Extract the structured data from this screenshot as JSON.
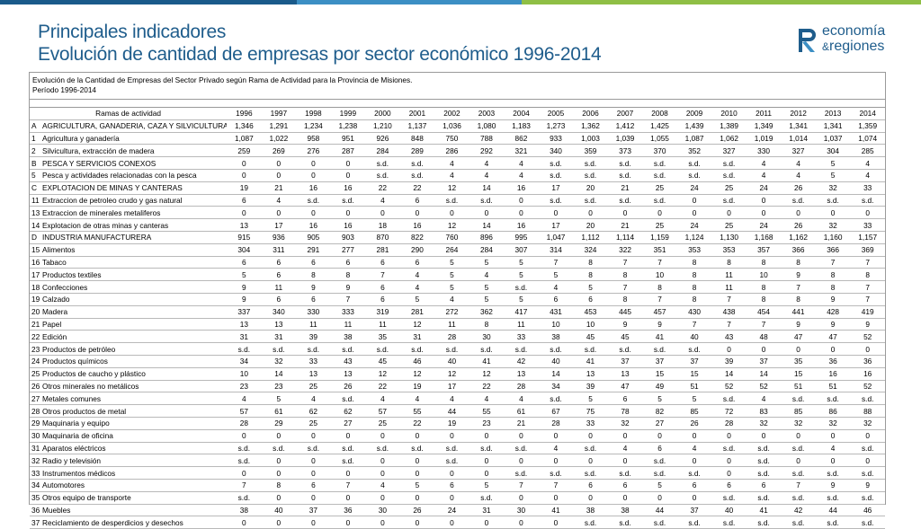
{
  "header": {
    "title": "Principales indicadores",
    "subtitle": "Evolución de cantidad de empresas por sector económico 1996-2014"
  },
  "logo": {
    "line1": "economía",
    "amp": "&",
    "line2": "regiones",
    "colors": {
      "text": "#1f5d8c",
      "mark": "#1f5d8c",
      "accent": "#3c8fc4"
    }
  },
  "colors": {
    "title": "#1f5d8c",
    "bar": [
      "#1a5a8a",
      "#3c8fc4",
      "#8fbf45"
    ]
  },
  "table": {
    "caption_line1": "Evolución de la Cantidad de Empresas del Sector Privado según Rama de Actividad para la Provincia de Misiones.",
    "caption_line2": "Período 1996-2014",
    "header_label": "Ramas de actividad",
    "years": [
      "1996",
      "1997",
      "1998",
      "1999",
      "2000",
      "2001",
      "2002",
      "2003",
      "2004",
      "2005",
      "2006",
      "2007",
      "2008",
      "2009",
      "2010",
      "2011",
      "2012",
      "2013",
      "2014"
    ],
    "rows": [
      {
        "code": "A",
        "name": "AGRICULTURA, GANADERIA, CAZA Y SILVICULTURA",
        "values": [
          "1,346",
          "1,291",
          "1,234",
          "1,238",
          "1,210",
          "1,137",
          "1,036",
          "1,080",
          "1,183",
          "1,273",
          "1,362",
          "1,412",
          "1,425",
          "1,439",
          "1,389",
          "1,349",
          "1,341",
          "1,341",
          "1,359"
        ]
      },
      {
        "code": "1",
        "name": "Agricultura y ganadería",
        "values": [
          "1,087",
          "1,022",
          "958",
          "951",
          "926",
          "848",
          "750",
          "788",
          "862",
          "933",
          "1,003",
          "1,039",
          "1,055",
          "1,087",
          "1,062",
          "1,019",
          "1,014",
          "1,037",
          "1,074"
        ]
      },
      {
        "code": "2",
        "name": "Silvicultura, extracción de madera",
        "values": [
          "259",
          "269",
          "276",
          "287",
          "284",
          "289",
          "286",
          "292",
          "321",
          "340",
          "359",
          "373",
          "370",
          "352",
          "327",
          "330",
          "327",
          "304",
          "285"
        ]
      },
      {
        "code": "B",
        "name": "PESCA Y SERVICIOS CONEXOS",
        "values": [
          "0",
          "0",
          "0",
          "0",
          "s.d.",
          "s.d.",
          "4",
          "4",
          "4",
          "s.d.",
          "s.d.",
          "s.d.",
          "s.d.",
          "s.d.",
          "s.d.",
          "4",
          "4",
          "5",
          "4"
        ]
      },
      {
        "code": "5",
        "name": "Pesca y actividades relacionadas con la pesca",
        "values": [
          "0",
          "0",
          "0",
          "0",
          "s.d.",
          "s.d.",
          "4",
          "4",
          "4",
          "s.d.",
          "s.d.",
          "s.d.",
          "s.d.",
          "s.d.",
          "s.d.",
          "4",
          "4",
          "5",
          "4"
        ]
      },
      {
        "code": "C",
        "name": "EXPLOTACION  DE  MINAS  Y  CANTERAS",
        "values": [
          "19",
          "21",
          "16",
          "16",
          "22",
          "22",
          "12",
          "14",
          "16",
          "17",
          "20",
          "21",
          "25",
          "24",
          "25",
          "24",
          "26",
          "32",
          "33"
        ]
      },
      {
        "code": "11",
        "name": "Extraccion de petroleo crudo y gas natural",
        "values": [
          "6",
          "4",
          "s.d.",
          "s.d.",
          "4",
          "6",
          "s.d.",
          "s.d.",
          "0",
          "s.d.",
          "s.d.",
          "s.d.",
          "s.d.",
          "0",
          "s.d.",
          "0",
          "s.d.",
          "s.d.",
          "s.d."
        ]
      },
      {
        "code": "13",
        "name": "Extraccion de minerales metaliferos",
        "values": [
          "0",
          "0",
          "0",
          "0",
          "0",
          "0",
          "0",
          "0",
          "0",
          "0",
          "0",
          "0",
          "0",
          "0",
          "0",
          "0",
          "0",
          "0",
          "0"
        ]
      },
      {
        "code": "14",
        "name": "Explotacion de otras minas y canteras",
        "values": [
          "13",
          "17",
          "16",
          "16",
          "18",
          "16",
          "12",
          "14",
          "16",
          "17",
          "20",
          "21",
          "25",
          "24",
          "25",
          "24",
          "26",
          "32",
          "33"
        ]
      },
      {
        "code": "D",
        "name": "INDUSTRIA MANUFACTURERA",
        "values": [
          "915",
          "936",
          "905",
          "903",
          "870",
          "822",
          "760",
          "896",
          "995",
          "1,047",
          "1,112",
          "1,114",
          "1,159",
          "1,124",
          "1,130",
          "1,168",
          "1,162",
          "1,160",
          "1,157"
        ]
      },
      {
        "code": "15",
        "name": "Alimentos",
        "values": [
          "304",
          "311",
          "291",
          "277",
          "281",
          "290",
          "264",
          "284",
          "307",
          "314",
          "324",
          "322",
          "351",
          "353",
          "353",
          "357",
          "366",
          "366",
          "369"
        ]
      },
      {
        "code": "16",
        "name": "Tabaco",
        "values": [
          "6",
          "6",
          "6",
          "6",
          "6",
          "6",
          "5",
          "5",
          "5",
          "7",
          "8",
          "7",
          "7",
          "8",
          "8",
          "8",
          "8",
          "7",
          "7"
        ]
      },
      {
        "code": "17",
        "name": "Productos textiles",
        "values": [
          "5",
          "6",
          "8",
          "8",
          "7",
          "4",
          "5",
          "4",
          "5",
          "5",
          "8",
          "8",
          "10",
          "8",
          "11",
          "10",
          "9",
          "8",
          "8"
        ]
      },
      {
        "code": "18",
        "name": "Confecciones",
        "values": [
          "9",
          "11",
          "9",
          "9",
          "6",
          "4",
          "5",
          "5",
          "s.d.",
          "4",
          "5",
          "7",
          "8",
          "8",
          "11",
          "8",
          "7",
          "8",
          "7"
        ]
      },
      {
        "code": "19",
        "name": "Calzado",
        "values": [
          "9",
          "6",
          "6",
          "7",
          "6",
          "5",
          "4",
          "5",
          "5",
          "6",
          "6",
          "8",
          "7",
          "8",
          "7",
          "8",
          "8",
          "9",
          "7"
        ]
      },
      {
        "code": "20",
        "name": "Madera",
        "values": [
          "337",
          "340",
          "330",
          "333",
          "319",
          "281",
          "272",
          "362",
          "417",
          "431",
          "453",
          "445",
          "457",
          "430",
          "438",
          "454",
          "441",
          "428",
          "419"
        ]
      },
      {
        "code": "21",
        "name": "Papel",
        "values": [
          "13",
          "13",
          "11",
          "11",
          "11",
          "12",
          "11",
          "8",
          "11",
          "10",
          "10",
          "9",
          "9",
          "7",
          "7",
          "7",
          "9",
          "9",
          "9"
        ]
      },
      {
        "code": "22",
        "name": "Edición",
        "values": [
          "31",
          "31",
          "39",
          "38",
          "35",
          "31",
          "28",
          "30",
          "33",
          "38",
          "45",
          "45",
          "41",
          "40",
          "43",
          "48",
          "47",
          "47",
          "52"
        ]
      },
      {
        "code": "23",
        "name": "Productos de petróleo",
        "values": [
          "s.d.",
          "s.d.",
          "s.d.",
          "s.d.",
          "s.d.",
          "s.d.",
          "s.d.",
          "s.d.",
          "s.d.",
          "s.d.",
          "s.d.",
          "s.d.",
          "s.d.",
          "s.d.",
          "0",
          "0",
          "0",
          "0",
          "0"
        ]
      },
      {
        "code": "24",
        "name": "Productos químicos",
        "values": [
          "34",
          "32",
          "33",
          "43",
          "45",
          "46",
          "40",
          "41",
          "42",
          "40",
          "41",
          "37",
          "37",
          "37",
          "39",
          "37",
          "35",
          "36",
          "36"
        ]
      },
      {
        "code": "25",
        "name": "Productos de caucho y plástico",
        "values": [
          "10",
          "14",
          "13",
          "13",
          "12",
          "12",
          "12",
          "12",
          "13",
          "14",
          "13",
          "13",
          "15",
          "15",
          "14",
          "14",
          "15",
          "16",
          "16"
        ]
      },
      {
        "code": "26",
        "name": "Otros minerales no metálicos",
        "values": [
          "23",
          "23",
          "25",
          "26",
          "22",
          "19",
          "17",
          "22",
          "28",
          "34",
          "39",
          "47",
          "49",
          "51",
          "52",
          "52",
          "51",
          "51",
          "52"
        ]
      },
      {
        "code": "27",
        "name": "Metales comunes",
        "values": [
          "4",
          "5",
          "4",
          "s.d.",
          "4",
          "4",
          "4",
          "4",
          "4",
          "s.d.",
          "5",
          "6",
          "5",
          "5",
          "s.d.",
          "4",
          "s.d.",
          "s.d.",
          "s.d."
        ]
      },
      {
        "code": "28",
        "name": "Otros productos de metal",
        "values": [
          "57",
          "61",
          "62",
          "62",
          "57",
          "55",
          "44",
          "55",
          "61",
          "67",
          "75",
          "78",
          "82",
          "85",
          "72",
          "83",
          "85",
          "86",
          "88"
        ]
      },
      {
        "code": "29",
        "name": "Maquinaria y equipo",
        "values": [
          "28",
          "29",
          "25",
          "27",
          "25",
          "22",
          "19",
          "23",
          "21",
          "28",
          "33",
          "32",
          "27",
          "26",
          "28",
          "32",
          "32",
          "32",
          "32"
        ]
      },
      {
        "code": "30",
        "name": "Maquinaria de oficina",
        "values": [
          "0",
          "0",
          "0",
          "0",
          "0",
          "0",
          "0",
          "0",
          "0",
          "0",
          "0",
          "0",
          "0",
          "0",
          "0",
          "0",
          "0",
          "0",
          "0"
        ]
      },
      {
        "code": "31",
        "name": "Aparatos eléctricos",
        "values": [
          "s.d.",
          "s.d.",
          "s.d.",
          "s.d.",
          "s.d.",
          "s.d.",
          "s.d.",
          "s.d.",
          "s.d.",
          "4",
          "s.d.",
          "4",
          "6",
          "4",
          "s.d.",
          "s.d.",
          "s.d.",
          "4",
          "s.d."
        ]
      },
      {
        "code": "32",
        "name": "Radio y televisión",
        "values": [
          "s.d.",
          "0",
          "0",
          "s.d.",
          "0",
          "0",
          "s.d.",
          "0",
          "0",
          "0",
          "0",
          "0",
          "s.d.",
          "0",
          "0",
          "s.d.",
          "0",
          "0",
          "0"
        ]
      },
      {
        "code": "33",
        "name": "Instrumentos médicos",
        "values": [
          "0",
          "0",
          "0",
          "0",
          "0",
          "0",
          "0",
          "0",
          "s.d.",
          "s.d.",
          "s.d.",
          "s.d.",
          "s.d.",
          "s.d.",
          "0",
          "s.d.",
          "s.d.",
          "s.d.",
          "s.d."
        ]
      },
      {
        "code": "34",
        "name": "Automotores",
        "values": [
          "7",
          "8",
          "6",
          "7",
          "4",
          "5",
          "6",
          "5",
          "7",
          "7",
          "6",
          "6",
          "5",
          "6",
          "6",
          "6",
          "7",
          "9",
          "9"
        ]
      },
      {
        "code": "35",
        "name": "Otros equipo de transporte",
        "values": [
          "s.d.",
          "0",
          "0",
          "0",
          "0",
          "0",
          "0",
          "s.d.",
          "0",
          "0",
          "0",
          "0",
          "0",
          "0",
          "s.d.",
          "s.d.",
          "s.d.",
          "s.d.",
          "s.d."
        ]
      },
      {
        "code": "36",
        "name": "Muebles",
        "values": [
          "38",
          "40",
          "37",
          "36",
          "30",
          "26",
          "24",
          "31",
          "30",
          "41",
          "38",
          "38",
          "44",
          "37",
          "40",
          "41",
          "42",
          "44",
          "46"
        ]
      },
      {
        "code": "37",
        "name": "Reciclamiento de desperdicios y desechos",
        "values": [
          "0",
          "0",
          "0",
          "0",
          "0",
          "0",
          "0",
          "0",
          "0",
          "0",
          "s.d.",
          "s.d.",
          "s.d.",
          "s.d.",
          "s.d.",
          "s.d.",
          "s.d.",
          "s.d.",
          "s.d."
        ]
      }
    ]
  }
}
